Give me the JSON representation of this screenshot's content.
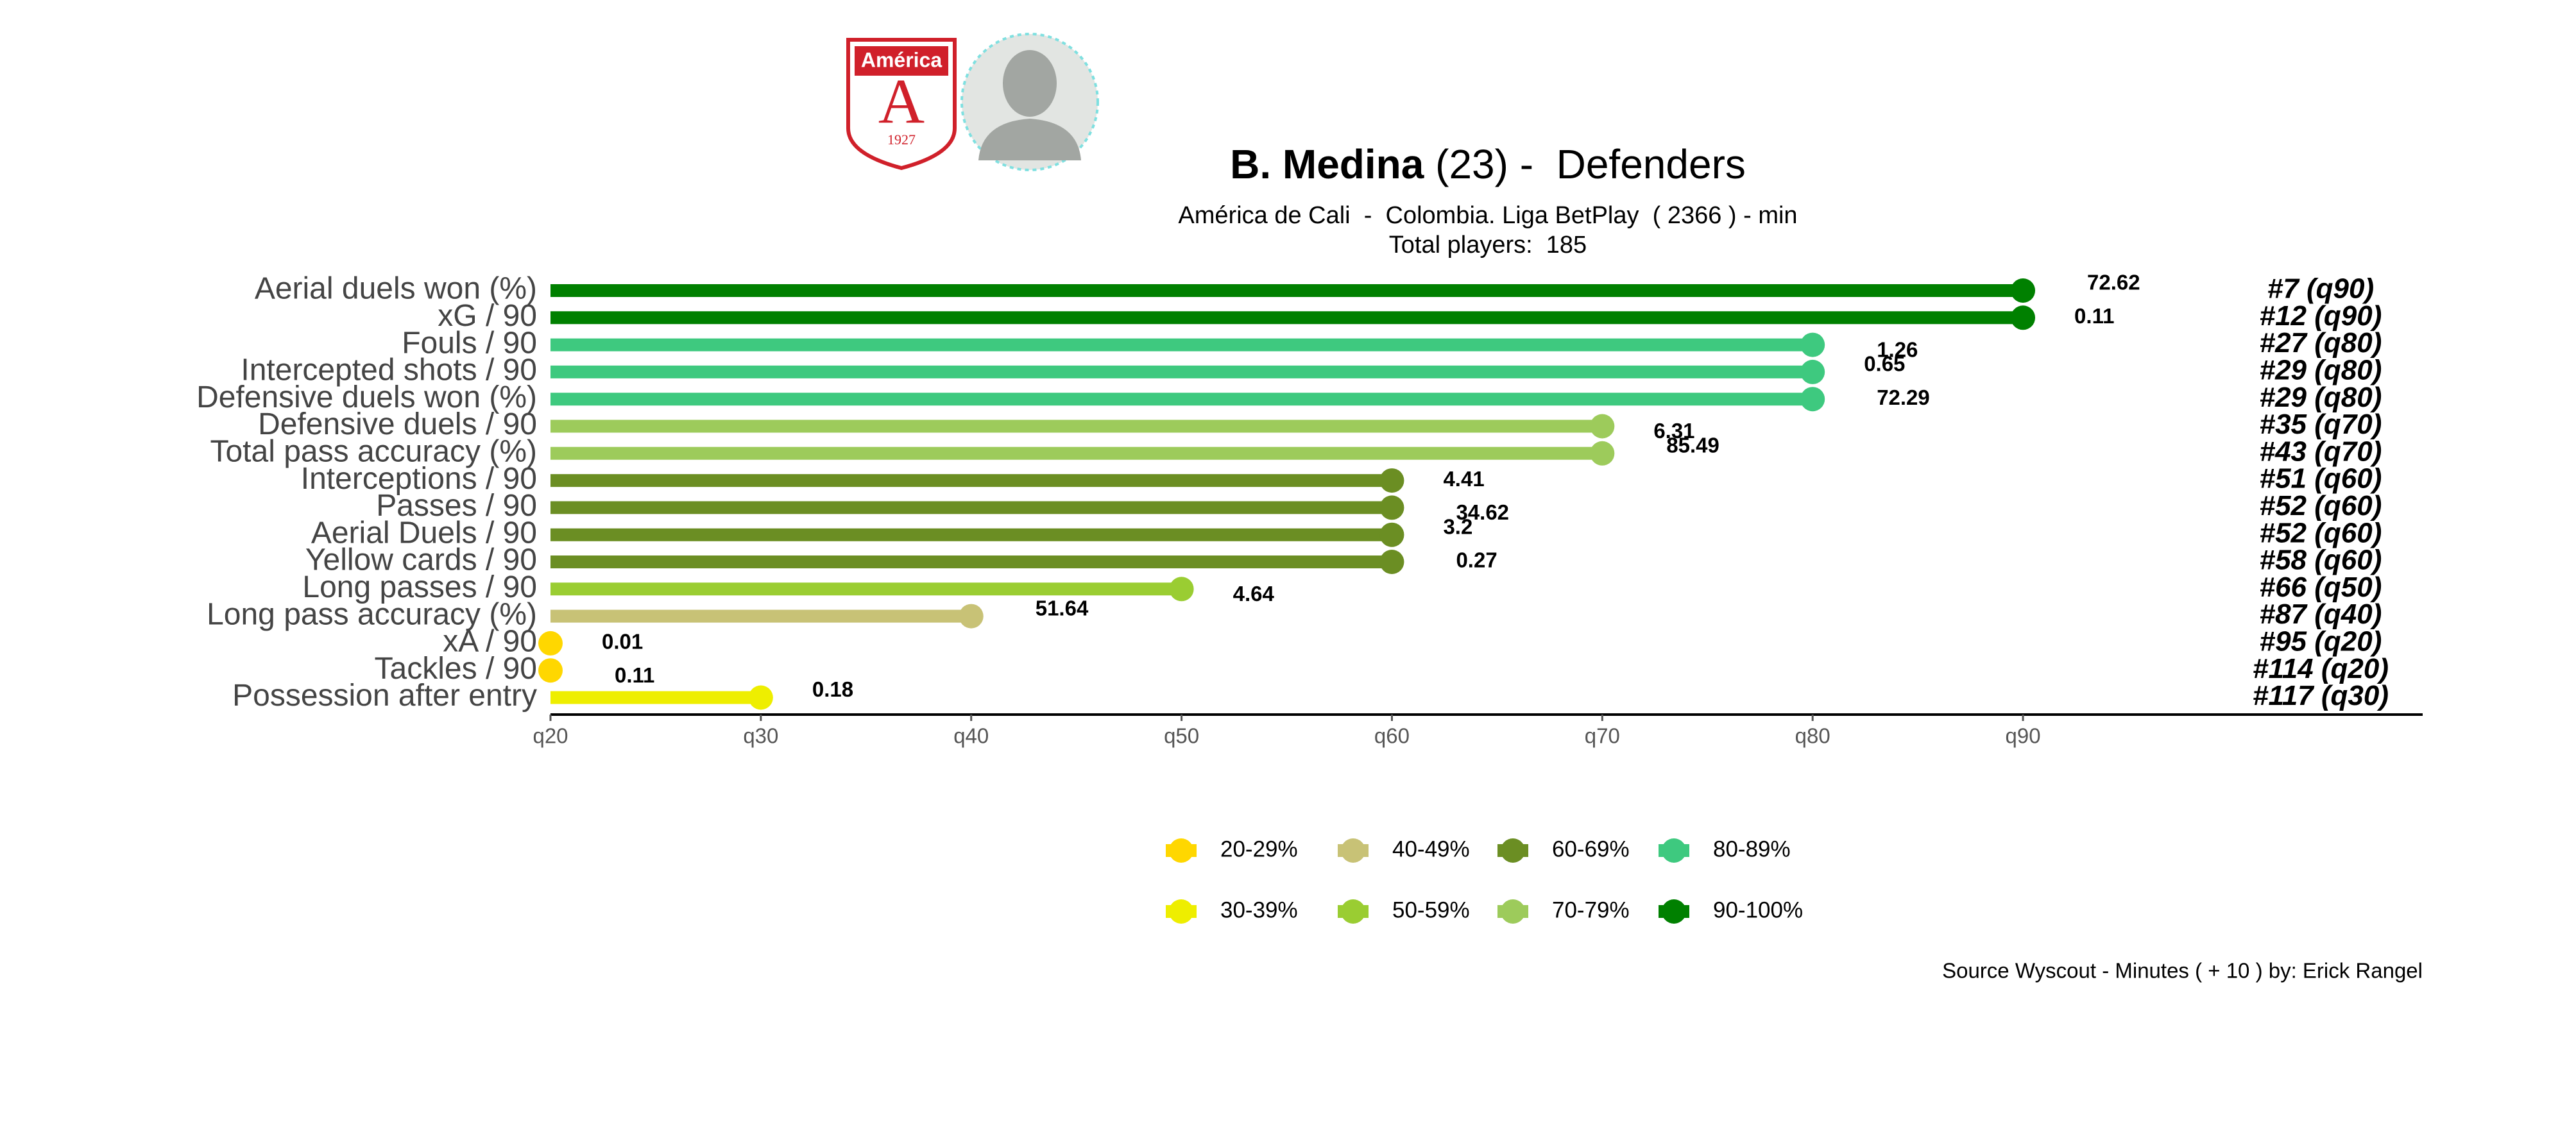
{
  "chart_data": {
    "type": "lollipop",
    "title_name": "B. Medina",
    "title_rest": "(23) -  Defenders",
    "subtitle": "América de Cali  -  Colombia. Liga BetPlay  ( 2366 ) - min",
    "subtitle2": "Total players:  185",
    "caption": "Source Wyscout - Minutes ( + 10 ) by: Erick Rangel",
    "logo": {
      "name": "América",
      "letter": "A",
      "year": "1927"
    },
    "categories": [
      "Aerial duels won (%)",
      "xG / 90",
      "Fouls / 90",
      "Intercepted shots / 90",
      "Defensive duels won (%)",
      "Defensive duels / 90",
      "Total pass accuracy (%)",
      "Interceptions / 90",
      "Passes / 90",
      "Aerial Duels / 90",
      "Yellow cards / 90",
      "Long passes / 90",
      "Long pass accuracy (%)",
      "xA / 90",
      "Tackles / 90",
      "Possession after entry"
    ],
    "values": [
      90,
      90,
      80,
      80,
      80,
      70,
      70,
      60,
      60,
      60,
      60,
      50,
      40,
      20,
      20,
      30
    ],
    "colors": [
      "#008000",
      "#008000",
      "#3ec97f",
      "#3ec97f",
      "#3ec97f",
      "#9dcb5b",
      "#9dcb5b",
      "#6b8e23",
      "#6b8e23",
      "#6b8e23",
      "#6b8e23",
      "#9acd32",
      "#c8c276",
      "#ffd700",
      "#ffd700",
      "#eeee00"
    ],
    "metric_values": [
      72.62,
      0.11,
      1.26,
      0.65,
      72.29,
      6.31,
      85.49,
      4.41,
      34.62,
      3.2,
      0.27,
      4.64,
      51.64,
      0.01,
      0.11,
      0.18
    ],
    "ranks": [
      "#7 (q90)",
      "#12 (q90)",
      "#27 (q80)",
      "#29 (q80)",
      "#29 (q80)",
      "#35 (q70)",
      "#43 (q70)",
      "#51 (q60)",
      "#52 (q60)",
      "#52 (q60)",
      "#58 (q60)",
      "#66 (q50)",
      "#87 (q40)",
      "#95 (q20)",
      "#114 (q20)",
      "#117 (q30)"
    ],
    "xlim": [
      20,
      109
    ],
    "xticks": [
      {
        "value": 20,
        "label": "q20"
      },
      {
        "value": 30,
        "label": "q30"
      },
      {
        "value": 40,
        "label": "q40"
      },
      {
        "value": 50,
        "label": "q50"
      },
      {
        "value": 60,
        "label": "q60"
      },
      {
        "value": 70,
        "label": "q70"
      },
      {
        "value": 80,
        "label": "q80"
      },
      {
        "value": 90,
        "label": "q90"
      }
    ],
    "legend": [
      {
        "name": "20-29%",
        "color": "#ffd700"
      },
      {
        "name": "30-39%",
        "color": "#eeee00"
      },
      {
        "name": "40-49%",
        "color": "#c8c276"
      },
      {
        "name": "50-59%",
        "color": "#9acd32"
      },
      {
        "name": "60-69%",
        "color": "#6b8e23"
      },
      {
        "name": "70-79%",
        "color": "#9dcb5b"
      },
      {
        "name": "80-89%",
        "color": "#3ec97f"
      },
      {
        "name": "90-100%",
        "color": "#008000"
      }
    ]
  }
}
